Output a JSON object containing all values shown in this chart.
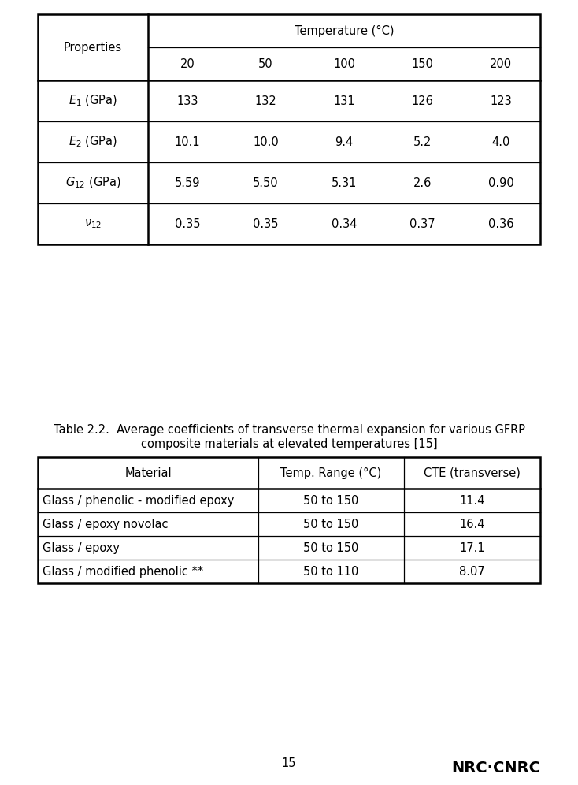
{
  "page_bg": "#ffffff",
  "table1": {
    "temp_header": "Temperature (°C)",
    "sub_headers": [
      "20",
      "50",
      "100",
      "150",
      "200"
    ],
    "properties_label": "Properties",
    "rows": [
      [
        "E₁ (GPa)",
        "133",
        "132",
        "131",
        "126",
        "123"
      ],
      [
        "E₂ (GPa)",
        "10.1",
        "10.0",
        "9.4",
        "5.2",
        "4.0"
      ],
      [
        "G₁₂ (GPa)",
        "5.59",
        "5.50",
        "5.31",
        "2.6",
        "0.90"
      ],
      [
        "ν₁₂",
        "0.35",
        "0.35",
        "0.34",
        "0.37",
        "0.36"
      ]
    ],
    "row_math": [
      "$E_1$ (GPa)",
      "$E_2$ (GPa)",
      "$G_{12}$ (GPa)",
      "$\\nu_{12}$"
    ]
  },
  "table2": {
    "title_line1": "Table 2.2.  Average coefficients of transverse thermal expansion for various GFRP",
    "title_line2": "composite materials at elevated temperatures [15]",
    "col_headers": [
      "Material",
      "Temp. Range (°C)",
      "CTE (transverse)"
    ],
    "rows": [
      [
        "Glass / phenolic - modified epoxy",
        "50 to 150",
        "11.4"
      ],
      [
        "Glass / epoxy novolac",
        "50 to 150",
        "16.4"
      ],
      [
        "Glass / epoxy",
        "50 to 150",
        "17.1"
      ],
      [
        "Glass / modified phenolic **",
        "50 to 110",
        "8.07"
      ]
    ]
  },
  "footer_page": "15",
  "footer_logo": "NRC·CNRC"
}
